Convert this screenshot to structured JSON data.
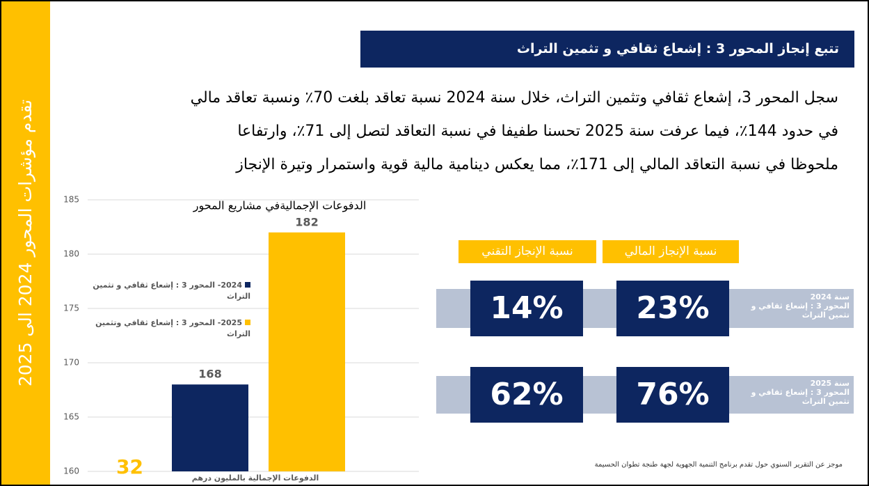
{
  "sidebar": "تقدم مؤشرات المحور 2024 الى 2025",
  "title": "تتبع إنجاز المحور 3 : إشعاع ثقافي و تثمين التراث",
  "paragraph": [
    "سجل المحور 3، إشعاع ثقافي وتثمين التراث، خلال سنة 2024 نسبة تعاقد بلغت 70٪ ونسبة تعاقد مالي",
    "في حدود 144٪، فيما عرفت سنة 2025 تحسنا طفيفا في نسبة التعاقد لتصل إلى 71٪، وارتفاعا",
    "ملحوظا في نسبة التعاقد المالي إلى 171٪، مما يعكس دينامية مالية قوية واستمرار وتيرة الإنجاز"
  ],
  "chart_data": {
    "type": "bar",
    "title": "الدفوعات الإجماليةفي مشاريع المحور",
    "x_label": "الدفوعات الإجمالية بالمليون درهم",
    "categories": [
      null
    ],
    "series": [
      {
        "name": "2024- المحور 3 : إشعاع ثقافي و تثمين التراث",
        "color": "#0d2660",
        "values": [
          168
        ]
      },
      {
        "name": "2025- المحور 3 : إشعاع ثقافي وتثمين التراث",
        "color": "#ffc000",
        "values": [
          182
        ]
      }
    ],
    "ylim": [
      160,
      185
    ],
    "yticks": [
      160,
      165,
      170,
      175,
      180,
      185
    ],
    "grid": true
  },
  "indicators": {
    "headers": [
      "نسبة الإنجاز التقني",
      "نسبة الإنجاز المالي"
    ],
    "rows": [
      {
        "label": [
          "سنة 2024",
          "المحور 3 : إشعاع ثقافي و",
          "تثمين التراث"
        ],
        "values": [
          "14%",
          "23%"
        ]
      },
      {
        "label": [
          "سنة 2025",
          "المحور 3 : إشعاع ثقافي و",
          "تثمين التراث"
        ],
        "values": [
          "62%",
          "76%"
        ]
      }
    ]
  },
  "page_number": "32",
  "footer": "موجز عن التقرير السنوي حول تقدم برنامج التنمية الجهوية لجهة طنجة تطوان الحسيمة"
}
